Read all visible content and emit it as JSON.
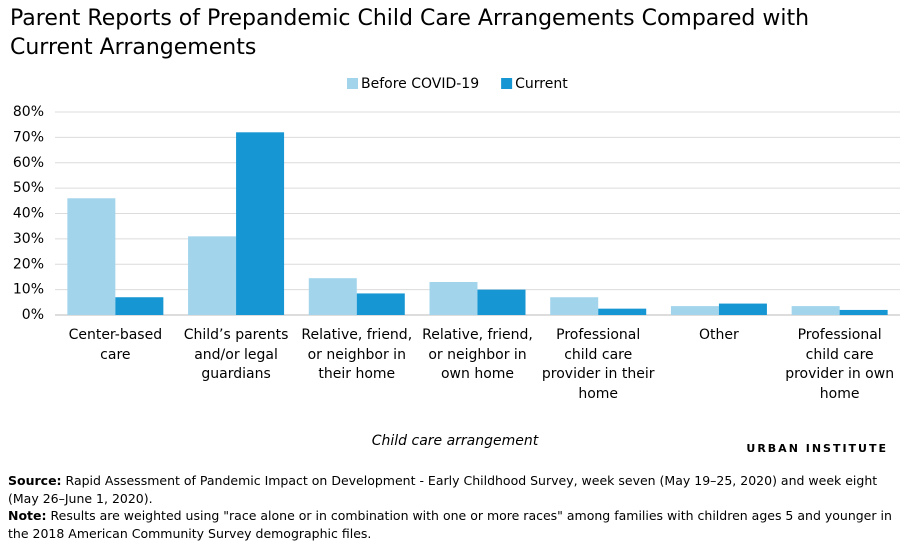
{
  "chart_data": {
    "type": "bar",
    "title": "Parent Reports of Prepandemic Child Care Arrangements Compared with Current Arrangements",
    "x_label": "Child care arrangement",
    "branding": "URBAN INSTITUTE",
    "categories": [
      "Center-based care",
      "Child’s parents and/or legal guardians",
      "Relative, friend, or neighbor in their home",
      "Relative, friend, or neighbor in own home",
      "Professional child care provider in their home",
      "Other",
      "Professional child care provider in own home"
    ],
    "series": [
      {
        "name": "Before COVID-19",
        "color": "#a2d4ec",
        "values": [
          46,
          31,
          14.5,
          13,
          7,
          3.5,
          3.5
        ]
      },
      {
        "name": "Current",
        "color": "#1696d2",
        "values": [
          7,
          72,
          8.5,
          10,
          2.5,
          4.5,
          2
        ]
      }
    ],
    "ylim": [
      0,
      80
    ],
    "yticks": [
      {
        "value": 0,
        "label": "0%"
      },
      {
        "value": 10,
        "label": "10%"
      },
      {
        "value": 20,
        "label": "20%"
      },
      {
        "value": 30,
        "label": "30%"
      },
      {
        "value": 40,
        "label": "40%"
      },
      {
        "value": 50,
        "label": "50%"
      },
      {
        "value": 60,
        "label": "60%"
      },
      {
        "value": 70,
        "label": "70%"
      },
      {
        "value": 80,
        "label": "80%"
      }
    ],
    "grid": true,
    "legend": "top",
    "source_label": "Source:",
    "source": "Rapid Assessment of Pandemic Impact on Development - Early Childhood Survey, week seven (May 19–25, 2020) and week eight (May 26–June 1, 2020).",
    "note_label": "Note:",
    "note": "Results are weighted using \"race alone or in combination with one or more races\" among families with children ages 5 and younger in the 2018 American Community Survey demographic files."
  }
}
